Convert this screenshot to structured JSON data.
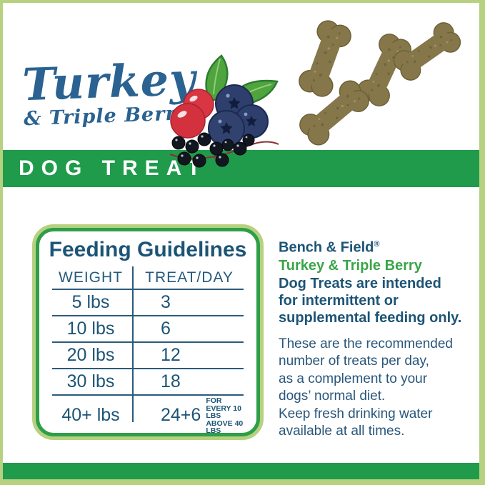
{
  "header": {
    "flavor_script": "Turkey",
    "flavor_sub": "& Triple Berry",
    "banner": "DOG TREAT"
  },
  "feeding_guidelines": {
    "title": "Feeding Guidelines",
    "columns": [
      "WEIGHT",
      "TREAT/DAY"
    ],
    "rows": [
      {
        "weight": "5 lbs",
        "treats": "3"
      },
      {
        "weight": "10 lbs",
        "treats": "6"
      },
      {
        "weight": "20 lbs",
        "treats": "12"
      },
      {
        "weight": "30 lbs",
        "treats": "18"
      },
      {
        "weight": "40+ lbs",
        "treats": "24+6",
        "note": "FOR EVERY 10 LBS\nABOVE 40 LBS"
      }
    ]
  },
  "info_panel": {
    "brand": "Bench & Field",
    "brand_reg": "®",
    "flavor": "Turkey & Triple Berry",
    "intended": "Dog Treats are intended\nfor intermittent or\nsupplemental feeding only.",
    "recommend": "These are the recommended\nnumber of treats per day,\nas a complement to your\ndogs’ normal diet.\nKeep fresh drinking water\navailable at all times."
  },
  "colors": {
    "frame_green": "#b6d17f",
    "band_green": "#1f9b4b",
    "box_border_green": "#2f9e48",
    "headline_blue": "#2a6291",
    "text_blue": "#1c5476",
    "flavor_green": "#3aa449",
    "treat_olive": "#85774a",
    "cranberry_red": "#d4313e",
    "blueberry_navy": "#2e3f6e"
  },
  "icons": {
    "berries": "triple-berry-illustration",
    "treats": "bone-treats-photo"
  }
}
